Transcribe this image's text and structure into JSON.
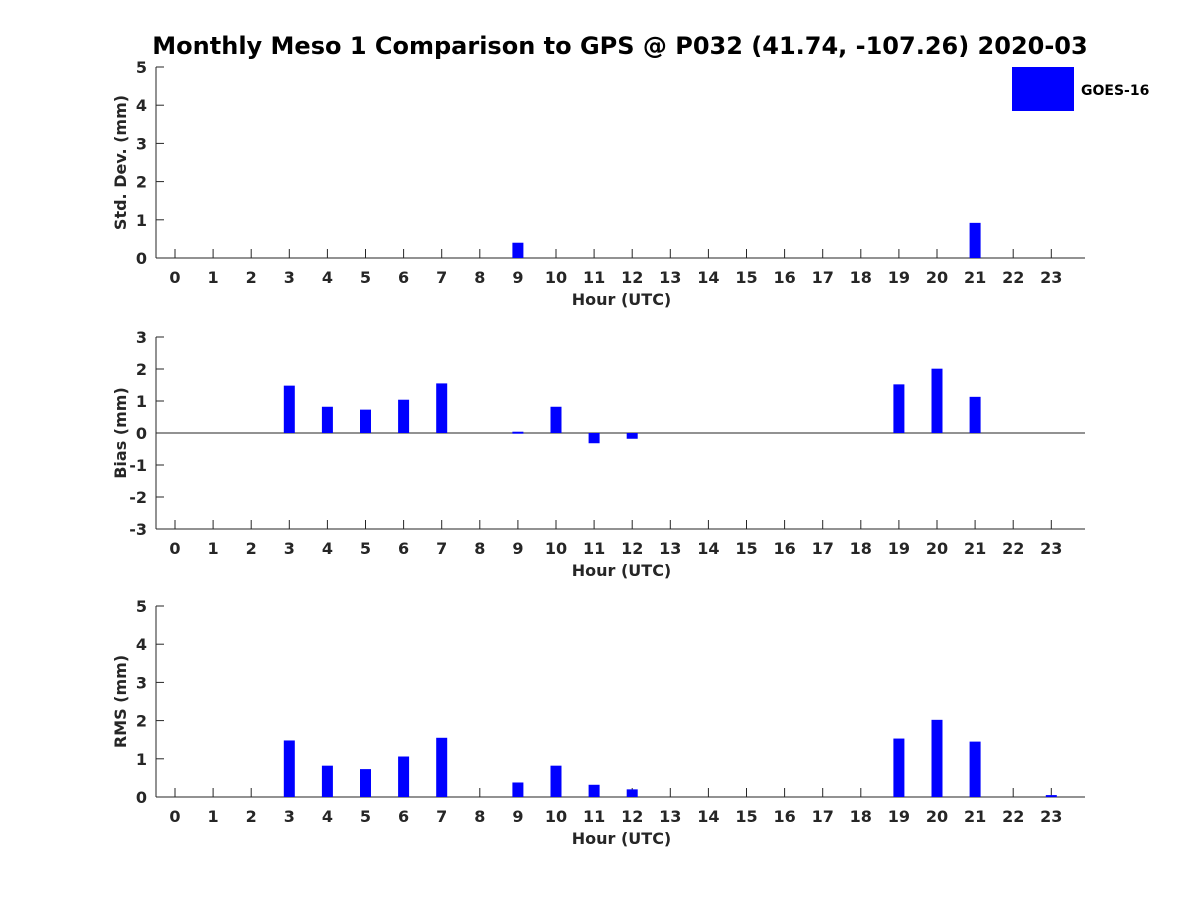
{
  "chart_data": {
    "type": "bar",
    "title": "Monthly Meso 1 Comparison to GPS @ P032 (41.74, -107.26) 2020-03",
    "legend": {
      "label": "GOES-16",
      "color": "#0000ff",
      "placement": "top-right"
    },
    "bar_color": "#0000ff",
    "x": [
      "0",
      "1",
      "2",
      "3",
      "4",
      "5",
      "6",
      "7",
      "8",
      "9",
      "10",
      "11",
      "12",
      "13",
      "14",
      "15",
      "16",
      "17",
      "18",
      "19",
      "20",
      "21",
      "22",
      "23"
    ],
    "panels": [
      {
        "ylabel": "Std. Dev. (mm)",
        "xlabel": "Hour (UTC)",
        "ylim": [
          0,
          5
        ],
        "yticks": [
          "0",
          "1",
          "2",
          "3",
          "4",
          "5"
        ],
        "series": [
          {
            "name": "GOES-16",
            "values": [
              0,
              0,
              0,
              0,
              0,
              0,
              0,
              0,
              0,
              0.4,
              0,
              0,
              0,
              0,
              0,
              0,
              0,
              0,
              0,
              0,
              0,
              0.92,
              0,
              0
            ]
          }
        ]
      },
      {
        "ylabel": "Bias (mm)",
        "xlabel": "Hour (UTC)",
        "ylim": [
          -3,
          3
        ],
        "yticks": [
          "-3",
          "-2",
          "-1",
          "0",
          "1",
          "2",
          "3"
        ],
        "series": [
          {
            "name": "GOES-16",
            "values": [
              0,
              0,
              0,
              1.48,
              0.82,
              0.73,
              1.04,
              1.55,
              0,
              0.04,
              0.82,
              -0.32,
              -0.18,
              0,
              0,
              0,
              0,
              0,
              0,
              1.52,
              2.01,
              1.13,
              0,
              0
            ]
          }
        ]
      },
      {
        "ylabel": "RMS (mm)",
        "xlabel": "Hour (UTC)",
        "ylim": [
          0,
          5
        ],
        "yticks": [
          "0",
          "1",
          "2",
          "3",
          "4",
          "5"
        ],
        "series": [
          {
            "name": "GOES-16",
            "values": [
              0,
              0,
              0,
              1.48,
              0.82,
              0.73,
              1.06,
              1.55,
              0,
              0.38,
              0.82,
              0.32,
              0.2,
              0,
              0,
              0,
              0,
              0,
              0,
              1.53,
              2.02,
              1.45,
              0,
              0.05
            ]
          }
        ]
      }
    ]
  }
}
